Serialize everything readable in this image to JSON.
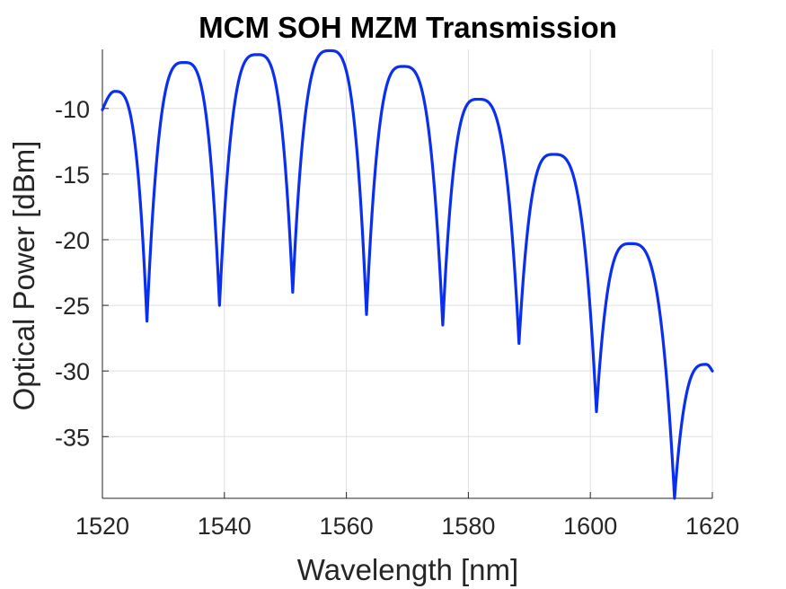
{
  "chart_data": {
    "type": "line",
    "title": "MCM SOH MZM Transmission",
    "xlabel": "Wavelength [nm]",
    "ylabel": "Optical Power [dBm]",
    "xlim": [
      1520,
      1620
    ],
    "ylim": [
      -39.7,
      -5.5
    ],
    "xticks": [
      1520,
      1540,
      1560,
      1580,
      1600,
      1620
    ],
    "xtick_labels": [
      "1520",
      "1540",
      "1560",
      "1580",
      "1600",
      "1620"
    ],
    "yticks": [
      -35,
      -30,
      -25,
      -20,
      -15,
      -10
    ],
    "ytick_labels": [
      "-35",
      "-30",
      "-25",
      "-20",
      "-15",
      "-10"
    ],
    "grid": true,
    "legend": "none",
    "series": [
      {
        "color": "#0a2ff0",
        "minima": [
          {
            "x": 1527.3,
            "y": -26.2
          },
          {
            "x": 1539.2,
            "y": -25.0
          },
          {
            "x": 1551.2,
            "y": -24.0
          },
          {
            "x": 1563.3,
            "y": -25.7
          },
          {
            "x": 1575.8,
            "y": -26.5
          },
          {
            "x": 1588.3,
            "y": -27.9
          },
          {
            "x": 1601.0,
            "y": -33.1
          },
          {
            "x": 1613.8,
            "y": -39.7
          }
        ],
        "maxima": [
          {
            "x": 1522.0,
            "y": -8.7
          },
          {
            "x": 1533.4,
            "y": -6.5
          },
          {
            "x": 1545.4,
            "y": -5.9
          },
          {
            "x": 1557.3,
            "y": -5.6
          },
          {
            "x": 1569.3,
            "y": -6.8
          },
          {
            "x": 1581.6,
            "y": -9.3
          },
          {
            "x": 1594.0,
            "y": -13.5
          },
          {
            "x": 1606.6,
            "y": -20.3
          },
          {
            "x": 1619.0,
            "y": -29.5
          }
        ],
        "start": {
          "x": 1520.0,
          "y": -10.1
        },
        "end": {
          "x": 1620.0,
          "y": -30.0
        }
      }
    ]
  }
}
